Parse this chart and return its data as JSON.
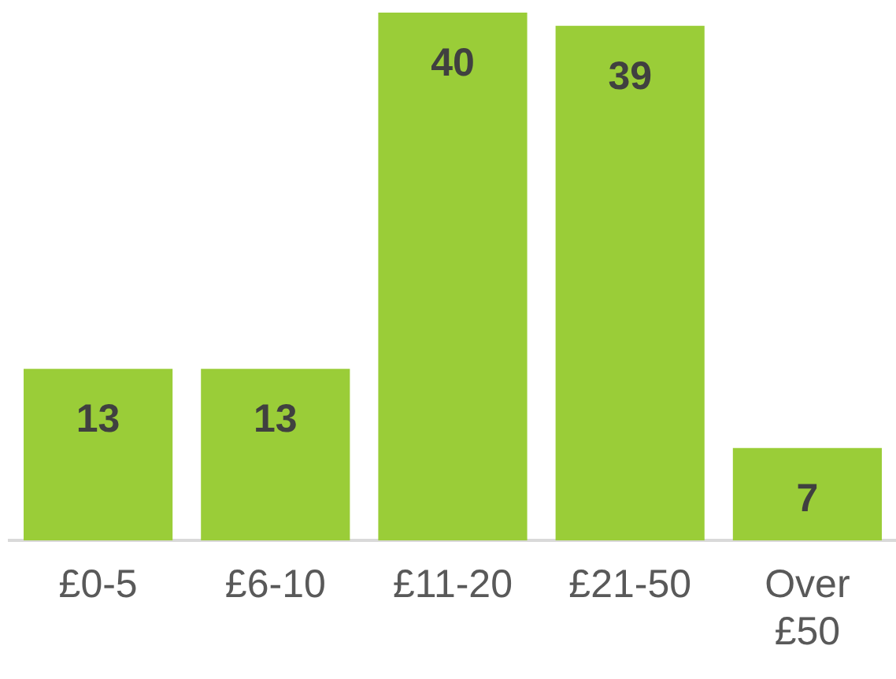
{
  "chart_data": {
    "type": "bar",
    "categories": [
      "£0-5",
      "£6-10",
      "£11-20",
      "£21-50",
      "Over £50"
    ],
    "values": [
      13,
      13,
      40,
      39,
      7
    ],
    "color": "#9acd38",
    "data_labels": true,
    "tick_labels": "x",
    "grid": false,
    "legend": false
  }
}
